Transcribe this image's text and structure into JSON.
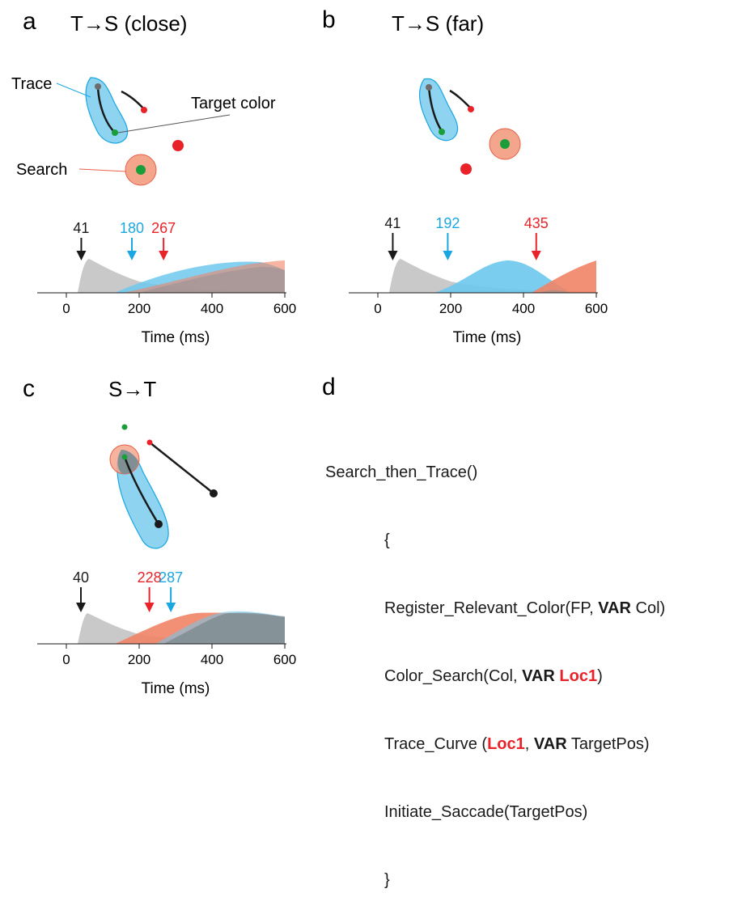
{
  "panels": [
    {
      "letter": "a",
      "title": "T→S (close)",
      "labels": {
        "trace": "Trace",
        "target_color": "Target color",
        "search": "Search"
      },
      "markers": [
        {
          "value": "41",
          "color": "#1a1a1a"
        },
        {
          "value": "180",
          "color": "#1aa7e1"
        },
        {
          "value": "267",
          "color": "#e8232a"
        }
      ]
    },
    {
      "letter": "b",
      "title": "T→S (far)",
      "markers": [
        {
          "value": "41",
          "color": "#1a1a1a"
        },
        {
          "value": "192",
          "color": "#1aa7e1"
        },
        {
          "value": "435",
          "color": "#e8232a"
        }
      ]
    },
    {
      "letter": "c",
      "title": "S→T",
      "markers": [
        {
          "value": "40",
          "color": "#1a1a1a"
        },
        {
          "value": "228",
          "color": "#e8232a"
        },
        {
          "value": "287",
          "color": "#1aa7e1"
        }
      ]
    },
    {
      "letter": "d"
    }
  ],
  "axis": {
    "ticks": [
      "0",
      "200",
      "400",
      "600"
    ],
    "xlabel": "Time (ms)"
  },
  "code": {
    "func": "Search_then_Trace()",
    "open_brace": "{",
    "l1_a": "Register_Relevant_Color(FP, ",
    "l1_kw": "VAR",
    "l1_b": " Col)",
    "l2_a": "Color_Search(Col, ",
    "l2_kw": "VAR",
    "l2_hl": "Loc1",
    "l2_b": ")",
    "l3_a": "Trace_Curve (",
    "l3_hl": "Loc1",
    "l3_mid": ", ",
    "l3_kw": "VAR",
    "l3_b": " TargetPos)",
    "l4": "Initiate_Saccade(TargetPos)",
    "close_brace": "}"
  },
  "colors": {
    "gray": "#c9c9c9",
    "blue": "#6dc8ee",
    "red": "#f08466",
    "darkfill": "#7a8a8f",
    "green": "#1a9e3a",
    "dotred": "#e8232a"
  }
}
